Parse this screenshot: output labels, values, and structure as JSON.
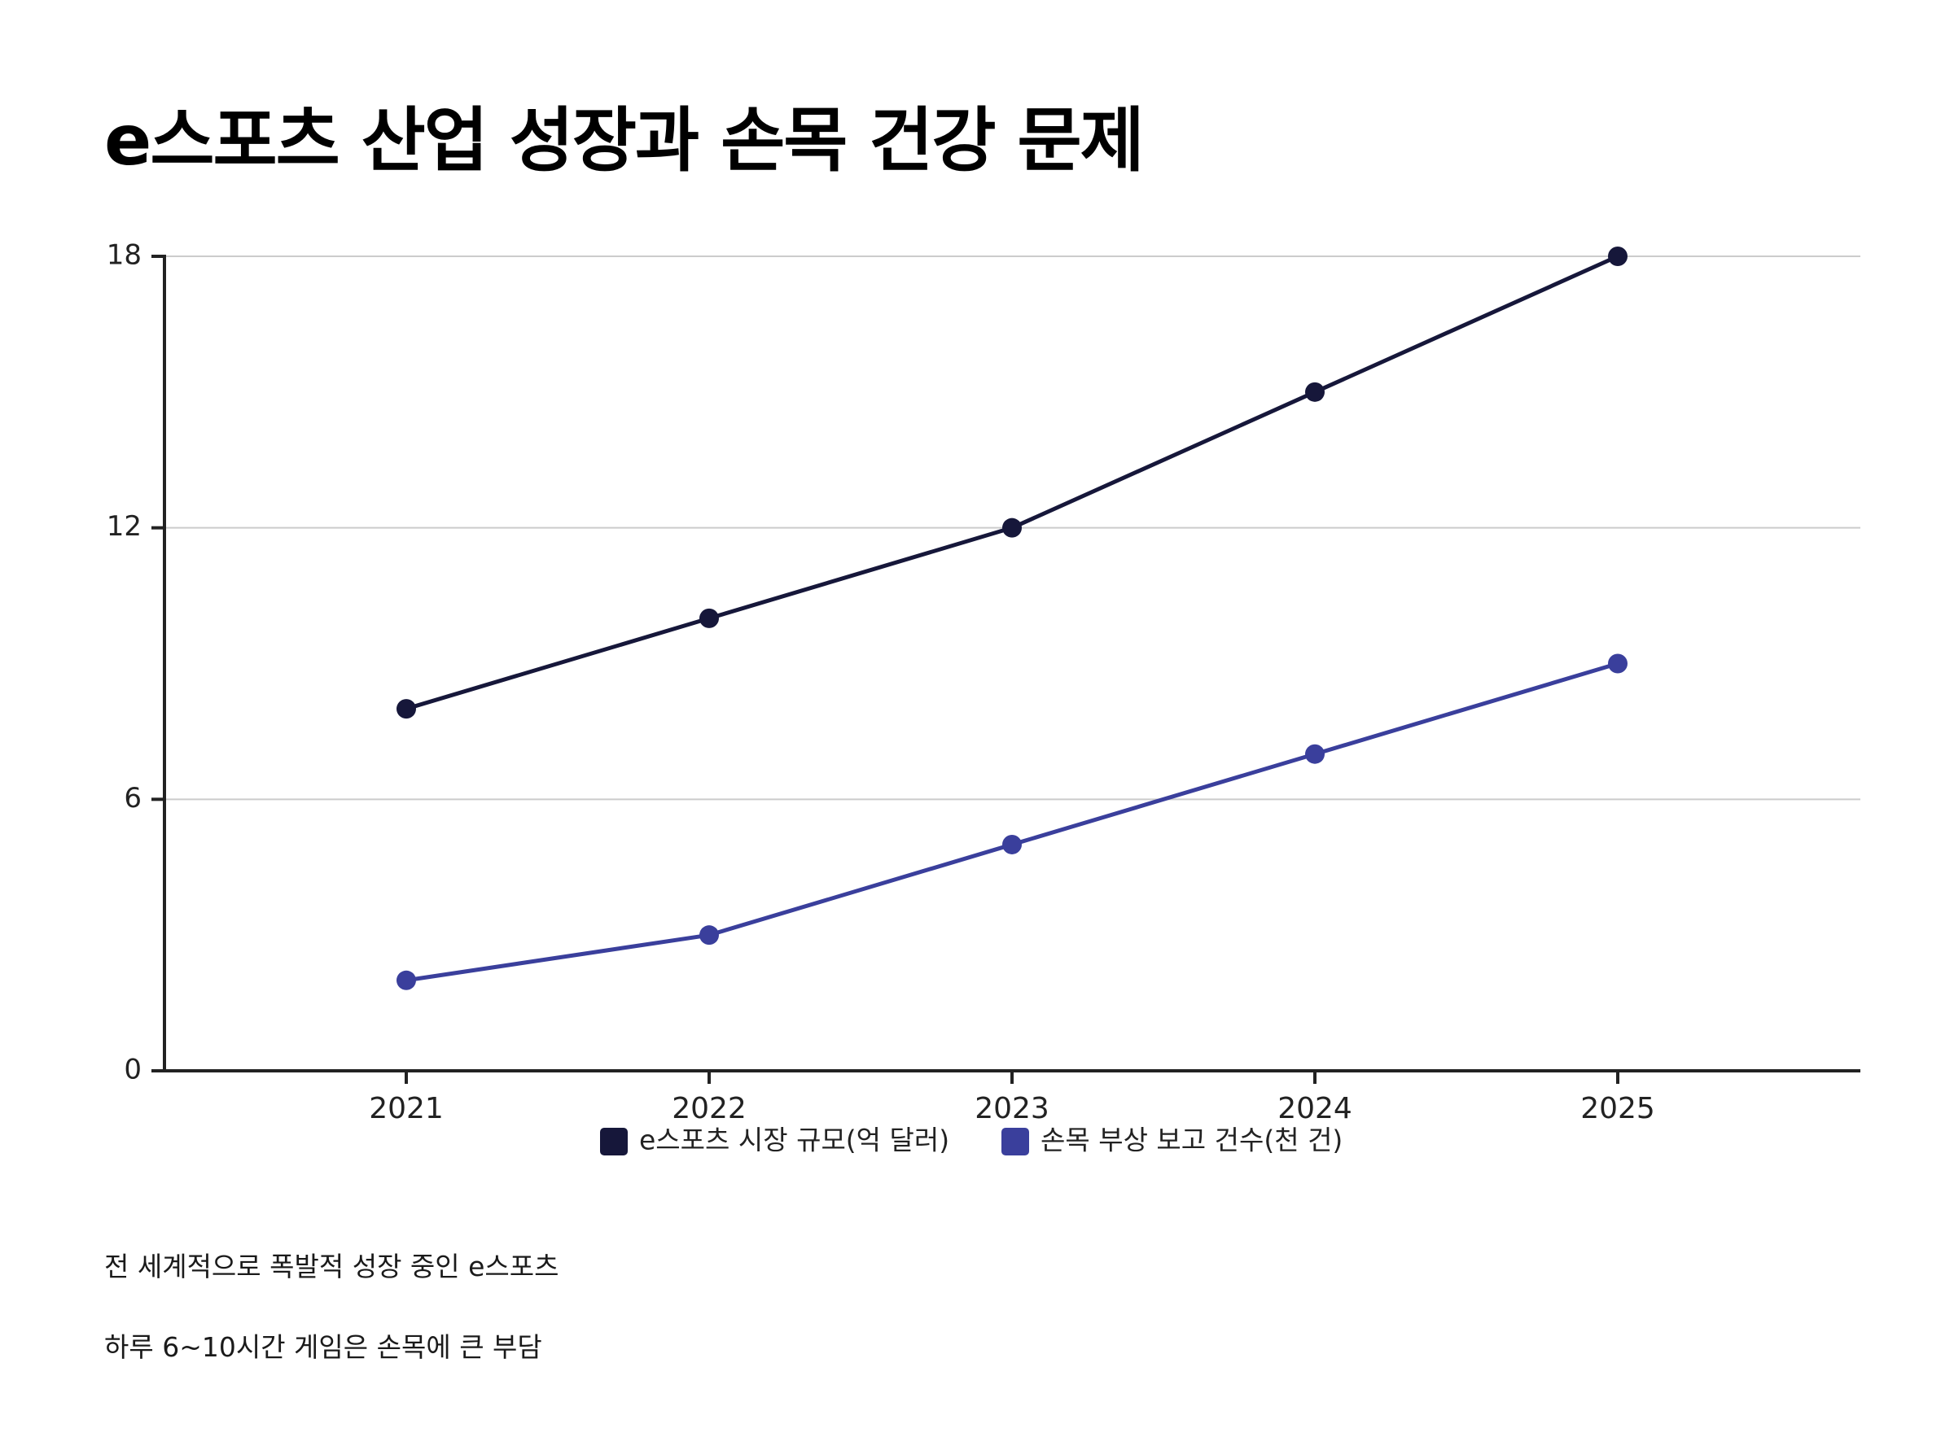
{
  "title": "e스포츠 산업 성장과 손목 건강 문제",
  "notes": [
    "전 세계적으로 폭발적 성장 중인 e스포츠",
    "하루 6~10시간 게임은 손목에 큰 부담"
  ],
  "chart_data": {
    "type": "line",
    "categories": [
      "2021",
      "2022",
      "2023",
      "2024",
      "2025"
    ],
    "series": [
      {
        "name": "e스포츠 시장 규모(억 달러)",
        "values": [
          8,
          10,
          12,
          15,
          18
        ],
        "color": "#16173a"
      },
      {
        "name": "손목 부상 보고 건수(천 건)",
        "values": [
          2,
          3,
          5,
          7,
          9
        ],
        "color": "#3a3f9c"
      }
    ],
    "ylim": [
      0,
      18
    ],
    "yticks": [
      "0",
      "6",
      "12",
      "18"
    ],
    "grid": true,
    "legend": "bottom-center"
  }
}
